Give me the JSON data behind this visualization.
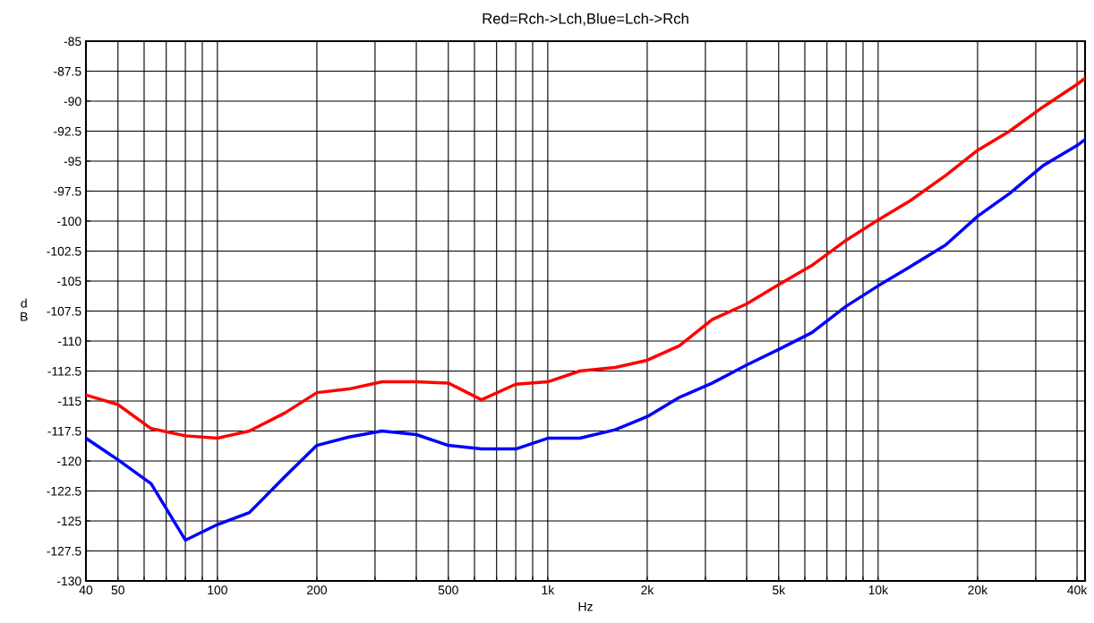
{
  "chart_data": {
    "type": "line",
    "title": "Red=Rch->Lch,Blue=Lch->Rch",
    "xlabel": "Hz",
    "ylabel": "d\nB",
    "log": "x",
    "grid": true,
    "line_style": "solid",
    "xlim": [
      40,
      42300
    ],
    "ylim": [
      -130,
      -85
    ],
    "xticks": [
      {
        "value": 40,
        "label": "40"
      },
      {
        "value": 50,
        "label": "50"
      },
      {
        "value": 60,
        "label": null
      },
      {
        "value": 70,
        "label": null
      },
      {
        "value": 80,
        "label": null
      },
      {
        "value": 90,
        "label": null
      },
      {
        "value": 100,
        "label": "100"
      },
      {
        "value": 200,
        "label": "200"
      },
      {
        "value": 300,
        "label": null
      },
      {
        "value": 400,
        "label": null
      },
      {
        "value": 500,
        "label": "500"
      },
      {
        "value": 600,
        "label": null
      },
      {
        "value": 700,
        "label": null
      },
      {
        "value": 800,
        "label": null
      },
      {
        "value": 900,
        "label": null
      },
      {
        "value": 1000,
        "label": "1k"
      },
      {
        "value": 2000,
        "label": "2k"
      },
      {
        "value": 3000,
        "label": null
      },
      {
        "value": 4000,
        "label": null
      },
      {
        "value": 5000,
        "label": "5k"
      },
      {
        "value": 6000,
        "label": null
      },
      {
        "value": 7000,
        "label": null
      },
      {
        "value": 8000,
        "label": null
      },
      {
        "value": 9000,
        "label": null
      },
      {
        "value": 10000,
        "label": "10k"
      },
      {
        "value": 20000,
        "label": "20k"
      },
      {
        "value": 30000,
        "label": null
      },
      {
        "value": 40000,
        "label": "40k"
      }
    ],
    "yticks": [
      -130,
      -127.5,
      -125,
      -122.5,
      -120,
      -117.5,
      -115,
      -112.5,
      -110,
      -107.5,
      -105,
      -102.5,
      -100,
      -97.5,
      -95,
      -92.5,
      -90,
      -87.5,
      -85
    ],
    "x": [
      40,
      50,
      63,
      80,
      100,
      125,
      160,
      200,
      250,
      315,
      400,
      500,
      630,
      800,
      1000,
      1250,
      1600,
      2000,
      2500,
      3150,
      4000,
      5000,
      6300,
      8000,
      10000,
      12500,
      16000,
      20000,
      25000,
      31500,
      40000,
      42300
    ],
    "series": [
      {
        "color": "#ff0000",
        "values": [
          -114.5,
          -115.3,
          -117.3,
          -117.9,
          -118.1,
          -117.5,
          -116.0,
          -114.3,
          -114.0,
          -113.4,
          -113.4,
          -113.5,
          -114.9,
          -113.6,
          -113.4,
          -112.5,
          -112.2,
          -111.6,
          -110.4,
          -108.2,
          -106.9,
          -105.3,
          -103.7,
          -101.6,
          -99.9,
          -98.3,
          -96.2,
          -94.1,
          -92.5,
          -90.5,
          -88.6,
          -88.1
        ]
      },
      {
        "color": "#0000ff",
        "values": [
          -118.1,
          -119.9,
          -121.9,
          -126.6,
          -125.3,
          -124.3,
          -121.3,
          -118.7,
          -118.0,
          -117.5,
          -117.8,
          -118.7,
          -119.0,
          -119.0,
          -118.1,
          -118.1,
          -117.4,
          -116.3,
          -114.7,
          -113.5,
          -112.0,
          -110.7,
          -109.3,
          -107.1,
          -105.4,
          -103.8,
          -102.0,
          -99.6,
          -97.7,
          -95.4,
          -93.7,
          -93.2
        ]
      }
    ]
  }
}
